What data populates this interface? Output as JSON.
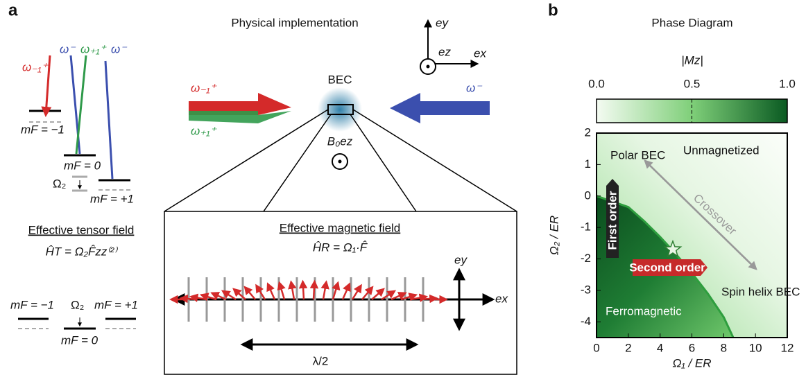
{
  "panel_labels": [
    "a",
    "b"
  ],
  "panel_a": {
    "title": "Physical implementation",
    "level_labels": {
      "w_minus1_plus": "ω₋₁⁺",
      "w_minus_1": "ω⁻",
      "w_plus1_plus": "ω₊₁⁺",
      "w_minus_2": "ω⁻",
      "mF_m1": "mF = −1",
      "mF_0": "mF = 0",
      "omega2": "Ω₂",
      "mF_p1": "mF = +1"
    },
    "axes_icon": {
      "ey": "ey",
      "ez": "ez",
      "ex": "ex"
    },
    "bec": "BEC",
    "beam_left_top": "ω₋₁⁺",
    "beam_left_bottom": "ω₊₁⁺",
    "beam_right": "ω⁻",
    "bias_field": "B₀ez",
    "tensor": {
      "title": "Effective tensor field",
      "formula": "ĤT = Ω₂F̂zz⁽²⁾",
      "mF_m1": "mF = −1",
      "omega2": "Ω₂",
      "mF_p1": "mF = +1",
      "mF_0": "mF = 0"
    },
    "box": {
      "title": "Effective magnetic field",
      "formula": "ĤR = Ω₁·F̂",
      "ey": "ey",
      "ex": "ex",
      "wavelength": "λ/2"
    }
  },
  "chart_data": {
    "type": "phase",
    "title": "Phase Diagram",
    "xlabel": "Ω₁ / ER",
    "ylabel": "Ω₂ / ER",
    "xlim": [
      0,
      12
    ],
    "xticks": [
      0,
      2,
      4,
      6,
      8,
      10,
      12
    ],
    "ylim": [
      -4.5,
      2
    ],
    "yticks": [
      -4,
      -3,
      -2,
      -1,
      0,
      1,
      2
    ],
    "colorbar": {
      "label": "|Mz|",
      "lim": [
        0,
        1
      ],
      "ticks": [
        {
          "value": 0,
          "label": "0.0"
        },
        {
          "value": 0.5,
          "label": "0.5"
        },
        {
          "value": 1,
          "label": "1.0"
        }
      ]
    },
    "boundary": {
      "color": "#2e9e3e",
      "x": [
        0,
        2,
        3,
        4,
        5,
        6,
        7,
        8,
        8.6
      ],
      "values": [
        0,
        -0.35,
        -0.8,
        -1.3,
        -1.85,
        -2.45,
        -3.1,
        -3.85,
        -4.5
      ]
    },
    "star": {
      "x": 4.8,
      "y": -1.7
    },
    "regions": [
      "Polar BEC",
      "Unmagnetized",
      "Crossover",
      "Spin helix BEC",
      "Ferromagnetic",
      "First order",
      "Second order"
    ]
  }
}
